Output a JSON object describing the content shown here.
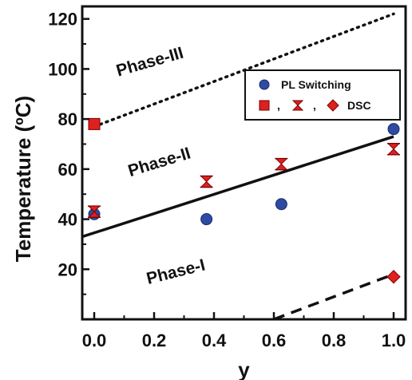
{
  "chart_data": {
    "type": "scatter",
    "xlabel": "y",
    "ylabel": "Temperature (ºC)",
    "xlim": [
      -0.04,
      1.04
    ],
    "ylim": [
      0,
      125
    ],
    "x_ticks": [
      "0.0",
      "0.2",
      "0.4",
      "0.6",
      "0.8",
      "1.0"
    ],
    "y_ticks": [
      "20",
      "40",
      "60",
      "80",
      "100",
      "120"
    ],
    "grid": false,
    "legend_position": "top-right",
    "legend": {
      "row1": "PL Switching",
      "row2_sep1": ",",
      "row2_sep2": ",",
      "row2_text": "DSC"
    },
    "series": [
      {
        "name": "PL Switching",
        "marker": "circle",
        "color": "#2e4ba3",
        "x": [
          0.0,
          0.375,
          0.625,
          1.0
        ],
        "y": [
          42,
          40,
          46,
          76
        ]
      },
      {
        "marker": "square",
        "color": "#e01f1f",
        "x": [
          0.0
        ],
        "y": [
          78
        ]
      },
      {
        "marker": "hourglass",
        "color": "#e01f1f",
        "x": [
          0.0,
          0.375,
          0.625,
          1.0
        ],
        "y": [
          43,
          55,
          62,
          68
        ]
      },
      {
        "marker": "diamond",
        "color": "#e01f1f",
        "x": [
          1.0
        ],
        "y": [
          17
        ]
      }
    ],
    "lines": [
      {
        "style": "dotted",
        "x": [
          0.0,
          1.0
        ],
        "y": [
          77,
          122
        ]
      },
      {
        "style": "solid",
        "x": [
          -0.04,
          1.0
        ],
        "y": [
          33,
          73
        ]
      },
      {
        "style": "dashed",
        "x": [
          0.6,
          1.0
        ],
        "y": [
          0,
          18
        ]
      }
    ],
    "annotations": [
      {
        "text": "Phase-III",
        "x": 0.08,
        "y": 97,
        "angle": -16
      },
      {
        "text": "Phase-II",
        "x": 0.12,
        "y": 57,
        "angle": -17
      },
      {
        "text": "Phase-I",
        "x": 0.18,
        "y": 14,
        "angle": -14
      }
    ]
  }
}
